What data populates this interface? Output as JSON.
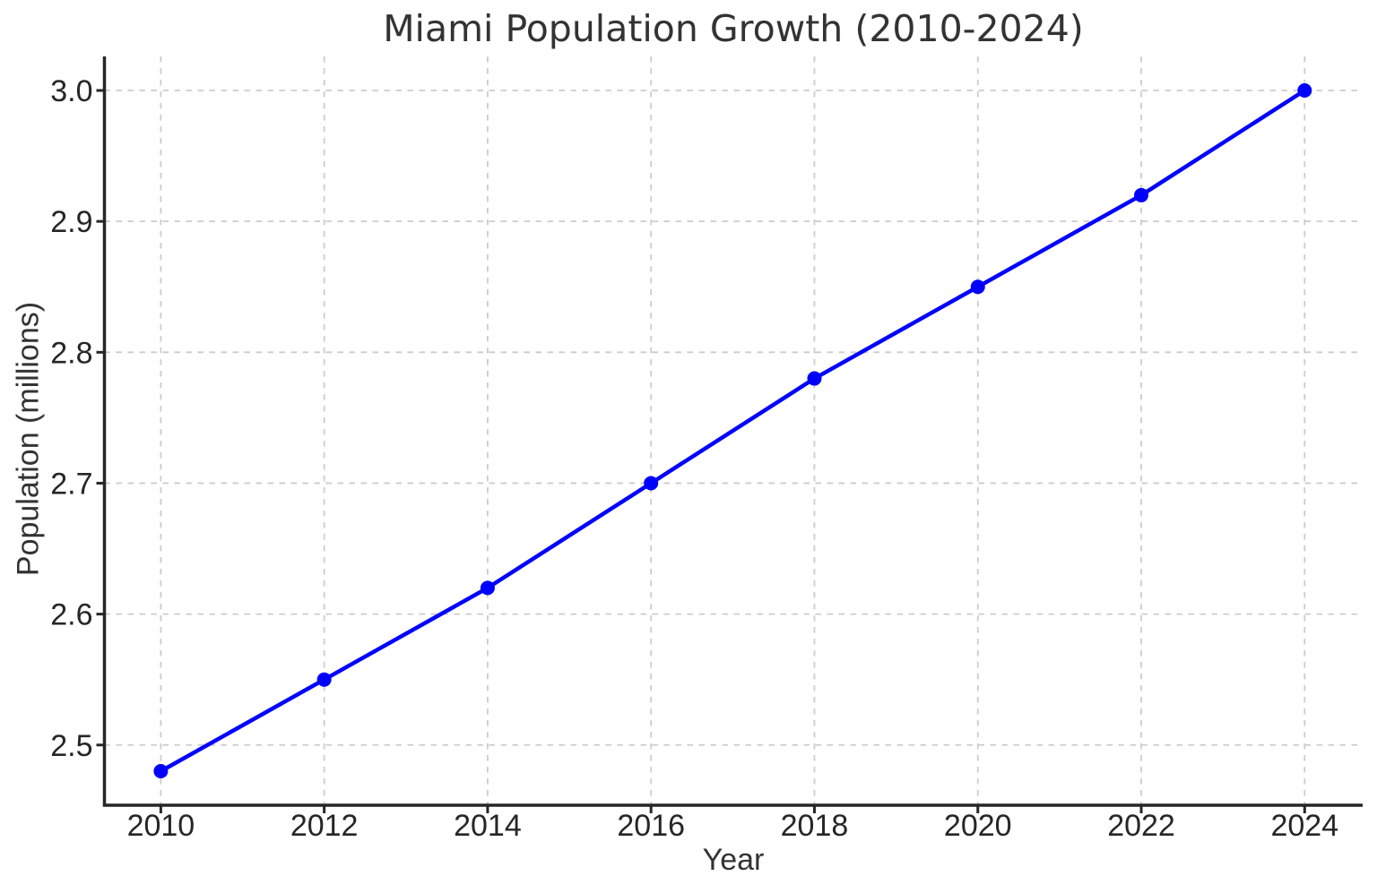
{
  "figure": {
    "title": "Miami Population Growth (2010-2024)",
    "xlabel": "Year",
    "ylabel": "Population (millions)"
  },
  "chart_data": {
    "type": "line",
    "title": "Miami Population Growth (2010-2024)",
    "xlabel": "Year",
    "ylabel": "Population (millions)",
    "x": [
      2010,
      2012,
      2014,
      2016,
      2018,
      2020,
      2022,
      2024
    ],
    "series": [
      {
        "name": "Population",
        "values": [
          2.48,
          2.55,
          2.62,
          2.7,
          2.78,
          2.85,
          2.92,
          3.0
        ],
        "color": "#0000ff",
        "marker": "circle"
      }
    ],
    "x_tick_labels": [
      "2010",
      "2012",
      "2014",
      "2016",
      "2018",
      "2020",
      "2022",
      "2024"
    ],
    "y_ticks": [
      2.5,
      2.6,
      2.7,
      2.8,
      2.9,
      3.0
    ],
    "y_tick_labels": [
      "2.5",
      "2.6",
      "2.7",
      "2.8",
      "2.9",
      "3.0"
    ],
    "xlim": [
      2009.31,
      2024.71
    ],
    "ylim": [
      2.454,
      3.026
    ],
    "grid": true,
    "grid_style": "dashed",
    "legend_position": "none",
    "colors": {
      "line": "#0000ff",
      "grid": "#cccccc",
      "axis": "#262626",
      "tick_text": "#262626",
      "background": "#ffffff"
    }
  }
}
